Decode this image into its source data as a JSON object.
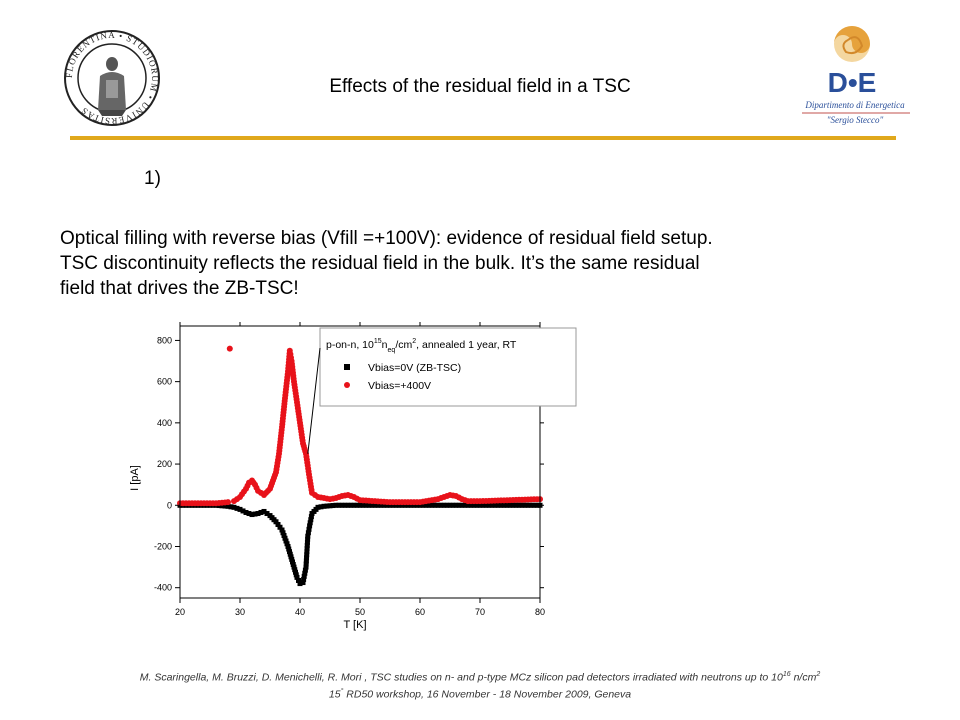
{
  "header": {
    "title": "Effects of the residual field in a TSC",
    "left_logo_text": "FLORENTINA • STUDIORUM • UNIVERSITAS",
    "right_logo": {
      "mark": "D•E",
      "line1": "Dipartimento di Energetica",
      "line2": "\"Sergio Stecco\""
    },
    "accent_color": "#e0a81c"
  },
  "body": {
    "item_number": "1)",
    "lines": [
      "Optical filling with reverse bias (Vfill =+100V): evidence of residual field setup.",
      "TSC discontinuity reflects the residual field in the bulk. It’s the same residual",
      "field that drives the ZB-TSC!"
    ]
  },
  "chart_data": {
    "type": "scatter",
    "xlabel": "T   [K]",
    "ylabel": "I   [pA]",
    "xlim": [
      20,
      80
    ],
    "ylim": [
      -450,
      870
    ],
    "xticks": [
      20,
      30,
      40,
      50,
      60,
      70,
      80
    ],
    "yticks": [
      -400,
      -200,
      0,
      200,
      400,
      600,
      800
    ],
    "legend": {
      "placement": "top-right",
      "title": "p-on-n, 10¹⁵n_eq/cm², annealed 1 year, RT",
      "title_parts": {
        "a": "p-on-n, 10",
        "b": "15",
        "c": "n",
        "d": "eq",
        "e": "/cm",
        "f": "2",
        "g": ", annealed 1 year, RT"
      }
    },
    "series": [
      {
        "name": "Vbias=0V (ZB-TSC)",
        "color": "#000000",
        "marker": "square",
        "x": [
          20,
          22,
          24,
          26,
          28,
          29,
          30,
          31,
          32,
          33,
          34,
          35,
          36,
          37,
          37.5,
          38,
          38.5,
          39,
          39.5,
          40,
          40.5,
          41,
          41.3,
          41.6,
          42,
          43,
          44,
          46,
          50,
          55,
          60,
          65,
          70,
          75,
          80
        ],
        "y": [
          0,
          0,
          0,
          0,
          -5,
          -10,
          -20,
          -35,
          -45,
          -40,
          -30,
          -50,
          -80,
          -120,
          -160,
          -200,
          -250,
          -300,
          -350,
          -380,
          -375,
          -300,
          -150,
          -100,
          -40,
          -10,
          -5,
          0,
          0,
          0,
          0,
          0,
          0,
          0,
          0
        ]
      },
      {
        "name": "Vbias=+400V",
        "color": "#e8121a",
        "marker": "circle",
        "x": [
          20,
          22,
          24,
          26,
          28,
          28.3,
          29,
          30,
          31,
          31.5,
          32,
          32.5,
          33,
          34,
          35,
          36,
          36.5,
          37,
          37.5,
          38,
          38.3,
          38.6,
          39,
          39.5,
          40,
          40.5,
          41,
          41.5,
          42,
          43,
          44,
          45,
          46,
          47,
          48,
          49,
          50,
          55,
          60,
          63,
          65,
          66,
          67,
          68,
          70,
          75,
          80
        ],
        "y": [
          10,
          10,
          10,
          10,
          15,
          760,
          20,
          40,
          80,
          110,
          120,
          100,
          70,
          50,
          80,
          160,
          250,
          380,
          520,
          650,
          750,
          700,
          600,
          500,
          400,
          300,
          250,
          150,
          60,
          40,
          35,
          30,
          35,
          45,
          50,
          40,
          25,
          15,
          15,
          30,
          50,
          45,
          30,
          20,
          20,
          25,
          30
        ]
      }
    ]
  },
  "footer": {
    "line1_a": "M. Scaringella, M. Bruzzi, D. Menichelli, R. Mori , TSC studies on n- and p-type MCz silicon pad detectors irradiated with neutrons up to 10",
    "line1_sup1": "16",
    "line1_b": " n/cm",
    "line1_sup2": "2",
    "line2_a": "15",
    "line2_sup": "°",
    "line2_b": " RD50 workshop, 16 November - 18 November 2009, Geneva"
  }
}
